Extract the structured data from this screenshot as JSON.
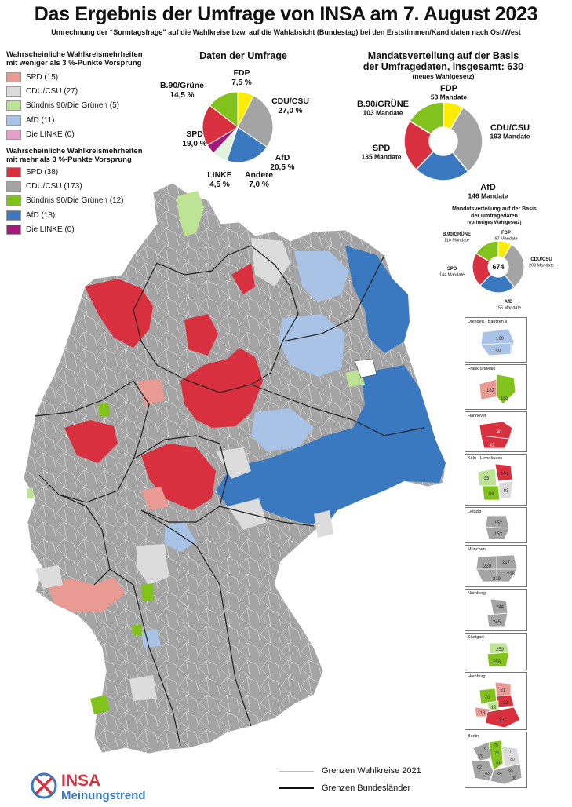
{
  "header": {
    "title": "Das Ergebnis der Umfrage von INSA am 7. August 2023",
    "subtitle": "Umrechnung der “Sonntagsfrage” auf die Wahlkreise bzw. auf die Wahlabsicht (Bundestag) bei den Erststimmen/Kandidaten nach Ost/West"
  },
  "legend_low": {
    "heading_1": "Wahrscheinliche Wahlkreismehrheiten",
    "heading_2": "mit weniger als 3 %-Punkte Vorsprung",
    "items": [
      {
        "label": "SPD (15)",
        "color": "#e89a93"
      },
      {
        "label": "CDU/CSU (27)",
        "color": "#dcdcdc"
      },
      {
        "label": "Bündnis 90/Die Grünen (5)",
        "color": "#bde394"
      },
      {
        "label": "AfD (11)",
        "color": "#a9c3e6"
      },
      {
        "label": "Die LINKE (0)",
        "color": "#e4a0c8"
      }
    ]
  },
  "legend_high": {
    "heading_1": "Wahrscheinliche Wahlkreismehrheiten",
    "heading_2": "mit mehr als 3 %-Punkte Vorsprung",
    "items": [
      {
        "label": "SPD (38)",
        "color": "#d9303f"
      },
      {
        "label": "CDU/CSU (173)",
        "color": "#a4a4a4"
      },
      {
        "label": "Bündnis 90/Die Grünen (12)",
        "color": "#82c21c"
      },
      {
        "label": "AfD (18)",
        "color": "#3a79bf"
      },
      {
        "label": "Die LINKE (0)",
        "color": "#a3197c"
      }
    ]
  },
  "chart_data": [
    {
      "type": "pie",
      "title": "Daten der Umfrage",
      "slices": [
        {
          "name": "FDP",
          "value": 7.5,
          "label": "7,5 %",
          "color": "#ffec00"
        },
        {
          "name": "CDU/CSU",
          "value": 27.0,
          "label": "27,0 %",
          "color": "#a4a4a4"
        },
        {
          "name": "AfD",
          "value": 20.5,
          "label": "20,5 %",
          "color": "#3a79bf"
        },
        {
          "name": "Andere",
          "value": 7.0,
          "label": "7,0 %",
          "color": "#e2f3dc"
        },
        {
          "name": "LINKE",
          "value": 4.5,
          "label": "4,5 %",
          "color": "#a3197c"
        },
        {
          "name": "SPD",
          "value": 19.0,
          "label": "19,0 %",
          "color": "#d9303f"
        },
        {
          "name": "B.90/Grüne",
          "value": 14.5,
          "label": "14,5 %",
          "color": "#82c21c"
        }
      ]
    },
    {
      "type": "pie",
      "title_1": "Mandatsverteilung auf der Basis",
      "title_2": "der Umfragedaten, insgesamt: 630",
      "title_3": "(neues Wahlgesetz)",
      "slices": [
        {
          "name": "FDP",
          "value": 53,
          "label": "53 Mandate",
          "color": "#ffec00"
        },
        {
          "name": "CDU/CSU",
          "value": 193,
          "label": "193 Mandate",
          "color": "#a4a4a4"
        },
        {
          "name": "AfD",
          "value": 146,
          "label": "146 Mandate",
          "color": "#3a79bf"
        },
        {
          "name": "SPD",
          "value": 135,
          "label": "135 Mandate",
          "color": "#d9303f"
        },
        {
          "name": "B.90/GRÜNE",
          "value": 103,
          "label": "103 Mandate",
          "color": "#82c21c"
        }
      ]
    },
    {
      "type": "pie",
      "title_1": "Mandatsverteilung auf der Basis",
      "title_2": "der Umfragedaten",
      "title_3": "(vorheriges Wahlgesetz)",
      "center": "674",
      "slices": [
        {
          "name": "FDP",
          "value": 57,
          "label": "57 Mandate",
          "color": "#ffec00"
        },
        {
          "name": "CDU/CSU",
          "value": 208,
          "label": "208 Mandate",
          "color": "#a4a4a4"
        },
        {
          "name": "AfD",
          "value": 155,
          "label": "155 Mandate",
          "color": "#3a79bf"
        },
        {
          "name": "SPD",
          "value": 144,
          "label": "144 Mandate",
          "color": "#d9303f"
        },
        {
          "name": "B.90/GRÜNE",
          "value": 110,
          "label": "110 Mandate",
          "color": "#82c21c"
        }
      ]
    }
  ],
  "insets": [
    {
      "name": "Dresden - Bautzen II",
      "districts": [
        "160",
        "159"
      ]
    },
    {
      "name": "Frankfurt/Main",
      "districts": [
        "182",
        "183"
      ]
    },
    {
      "name": "Hannover",
      "districts": [
        "41",
        "42"
      ]
    },
    {
      "name": "Köln - Leverkusen",
      "districts": [
        "101",
        "95",
        "94",
        "93"
      ]
    },
    {
      "name": "Leipzig",
      "districts": [
        "152",
        "153"
      ]
    },
    {
      "name": "München",
      "districts": [
        "217",
        "220",
        "218",
        "219"
      ]
    },
    {
      "name": "Nürnberg",
      "districts": [
        "244",
        "245"
      ]
    },
    {
      "name": "Stuttgart",
      "districts": [
        "259",
        "258"
      ]
    },
    {
      "name": "Hamburg",
      "districts": [
        "21",
        "22",
        "20",
        "19",
        "18",
        "23"
      ]
    },
    {
      "name": "Berlin",
      "districts": [
        "75",
        "76",
        "77",
        "78",
        "79",
        "80",
        "81",
        "82",
        "83",
        "84",
        "85",
        "86"
      ]
    }
  ],
  "map_legend": {
    "wahlkreise": "Grenzen Wahlkreise 2021",
    "bundeslaender": "Grenzen Bundesländer"
  },
  "logo": {
    "brand": "INSA",
    "tagline": "Meinungstrend"
  }
}
